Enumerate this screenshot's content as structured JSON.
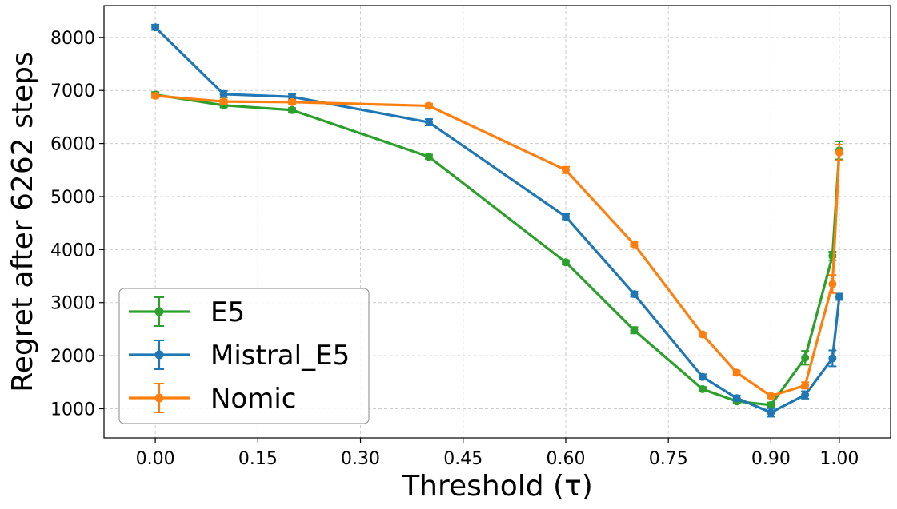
{
  "chart_data": {
    "type": "line",
    "title": "",
    "xlabel": "Threshold (τ)",
    "ylabel": "Regret after 6262 steps",
    "xlim": [
      -0.075,
      1.075
    ],
    "ylim": [
      450,
      8600
    ],
    "xticks": [
      0.0,
      0.15,
      0.3,
      0.45,
      0.6,
      0.75,
      0.9,
      1.0
    ],
    "xtick_labels": [
      "0.00",
      "0.15",
      "0.30",
      "0.45",
      "0.60",
      "0.75",
      "0.90",
      "1.00"
    ],
    "yticks": [
      1000,
      2000,
      3000,
      4000,
      5000,
      6000,
      7000,
      8000
    ],
    "ytick_labels": [
      "1000",
      "2000",
      "3000",
      "4000",
      "5000",
      "6000",
      "7000",
      "8000"
    ],
    "grid": true,
    "legend_position": "lower-left",
    "series": [
      {
        "name": "E5",
        "color": "#2ca02c",
        "points": [
          {
            "x": 0.0,
            "y": 6920,
            "err": 50
          },
          {
            "x": 0.1,
            "y": 6720,
            "err": 40
          },
          {
            "x": 0.2,
            "y": 6630,
            "err": 40
          },
          {
            "x": 0.4,
            "y": 5750,
            "err": 40
          },
          {
            "x": 0.6,
            "y": 3760,
            "err": 40
          },
          {
            "x": 0.7,
            "y": 2480,
            "err": 60
          },
          {
            "x": 0.8,
            "y": 1370,
            "err": 40
          },
          {
            "x": 0.85,
            "y": 1140,
            "err": 40
          },
          {
            "x": 0.9,
            "y": 1070,
            "err": 50
          },
          {
            "x": 0.95,
            "y": 1960,
            "err": 130
          },
          {
            "x": 0.99,
            "y": 3880,
            "err": 80
          },
          {
            "x": 1.0,
            "y": 5870,
            "err": 170
          }
        ]
      },
      {
        "name": "Mistral_E5",
        "color": "#1f77b4",
        "points": [
          {
            "x": 0.0,
            "y": 8190,
            "err": 50
          },
          {
            "x": 0.1,
            "y": 6930,
            "err": 60
          },
          {
            "x": 0.2,
            "y": 6880,
            "err": 50
          },
          {
            "x": 0.4,
            "y": 6400,
            "err": 60
          },
          {
            "x": 0.6,
            "y": 4620,
            "err": 50
          },
          {
            "x": 0.7,
            "y": 3160,
            "err": 50
          },
          {
            "x": 0.8,
            "y": 1600,
            "err": 50
          },
          {
            "x": 0.85,
            "y": 1200,
            "err": 50
          },
          {
            "x": 0.9,
            "y": 930,
            "err": 80
          },
          {
            "x": 0.95,
            "y": 1260,
            "err": 70
          },
          {
            "x": 0.99,
            "y": 1950,
            "err": 150
          },
          {
            "x": 1.0,
            "y": 3110,
            "err": 60
          }
        ]
      },
      {
        "name": "Nomic",
        "color": "#ff7f0e",
        "points": [
          {
            "x": 0.0,
            "y": 6900,
            "err": 40
          },
          {
            "x": 0.1,
            "y": 6790,
            "err": 40
          },
          {
            "x": 0.2,
            "y": 6780,
            "err": 40
          },
          {
            "x": 0.4,
            "y": 6710,
            "err": 40
          },
          {
            "x": 0.6,
            "y": 5500,
            "err": 60
          },
          {
            "x": 0.7,
            "y": 4100,
            "err": 40
          },
          {
            "x": 0.8,
            "y": 2400,
            "err": 40
          },
          {
            "x": 0.85,
            "y": 1680,
            "err": 40
          },
          {
            "x": 0.9,
            "y": 1240,
            "err": 40
          },
          {
            "x": 0.95,
            "y": 1440,
            "err": 60
          },
          {
            "x": 0.99,
            "y": 3350,
            "err": 170
          },
          {
            "x": 1.0,
            "y": 5830,
            "err": 150
          }
        ]
      }
    ]
  }
}
